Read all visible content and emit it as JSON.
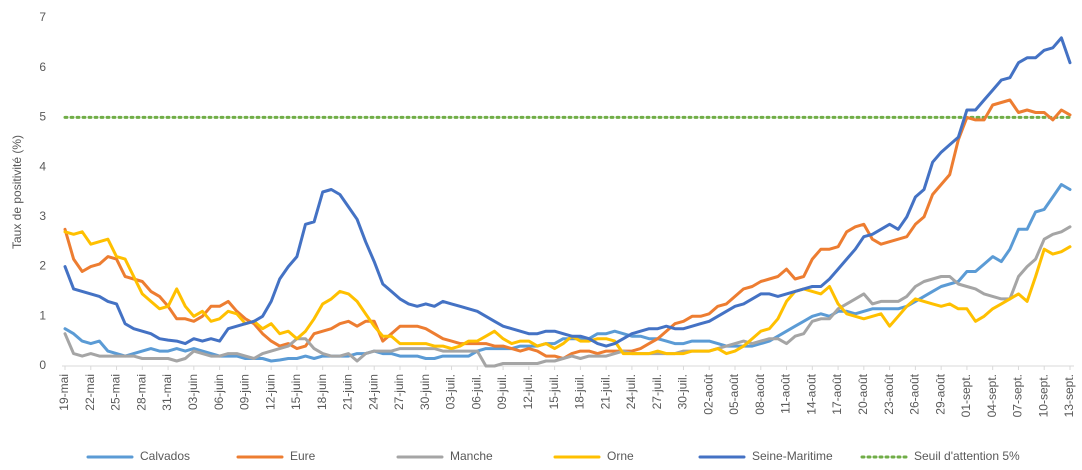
{
  "chart_data": {
    "type": "line",
    "y_label": "Taux de positivité (%)",
    "ylim": [
      0,
      7
    ],
    "yticks": [
      0,
      1,
      2,
      3,
      4,
      5,
      6,
      7
    ],
    "categories": [
      "19-mai",
      null,
      null,
      "22-mai",
      null,
      null,
      "25-mai",
      null,
      null,
      "28-mai",
      null,
      null,
      "31-mai",
      null,
      null,
      "03-juin",
      null,
      null,
      "06-juin",
      null,
      null,
      "09-juin",
      null,
      null,
      "12-juin",
      null,
      null,
      "15-juin",
      null,
      null,
      "18-juin",
      null,
      null,
      "21-juin",
      null,
      null,
      "24-juin",
      null,
      null,
      "27-juin",
      null,
      null,
      "30-juin",
      null,
      null,
      "03-juil.",
      null,
      null,
      "06-juil.",
      null,
      null,
      "09-juil.",
      null,
      null,
      "12-juil.",
      null,
      null,
      "15-juil.",
      null,
      null,
      "18-juil.",
      null,
      null,
      "21-juil.",
      null,
      null,
      "24-juil.",
      null,
      null,
      "27-juil.",
      null,
      null,
      "30-juil.",
      null,
      null,
      "02-août",
      null,
      null,
      "05-août",
      null,
      null,
      "08-août",
      null,
      null,
      "11-août",
      null,
      null,
      "14-août",
      null,
      null,
      "17-août",
      null,
      null,
      "20-août",
      null,
      null,
      "23-août",
      null,
      null,
      "26-août",
      null,
      null,
      "29-août",
      null,
      null,
      "01-sept.",
      null,
      null,
      "04-sept.",
      null,
      null,
      "07-sept.",
      null,
      null,
      "10-sept.",
      null,
      null,
      "13-sept."
    ],
    "series": [
      {
        "name": "Calvados",
        "color": "#5b9bd5",
        "values": [
          0.75,
          0.65,
          0.5,
          0.45,
          0.5,
          0.3,
          0.25,
          0.2,
          0.25,
          0.3,
          0.35,
          0.3,
          0.3,
          0.35,
          0.3,
          0.35,
          0.3,
          0.25,
          0.2,
          0.2,
          0.2,
          0.15,
          0.15,
          0.15,
          0.1,
          0.12,
          0.15,
          0.15,
          0.2,
          0.15,
          0.2,
          0.2,
          0.2,
          0.2,
          0.25,
          0.25,
          0.3,
          0.25,
          0.25,
          0.2,
          0.2,
          0.2,
          0.15,
          0.15,
          0.2,
          0.2,
          0.2,
          0.2,
          0.3,
          0.35,
          0.35,
          0.35,
          0.35,
          0.4,
          0.4,
          0.4,
          0.45,
          0.45,
          0.55,
          0.55,
          0.55,
          0.55,
          0.65,
          0.65,
          0.7,
          0.65,
          0.6,
          0.6,
          0.55,
          0.55,
          0.5,
          0.45,
          0.45,
          0.5,
          0.5,
          0.5,
          0.45,
          0.4,
          0.4,
          0.4,
          0.4,
          0.45,
          0.5,
          0.6,
          0.7,
          0.8,
          0.9,
          1.0,
          1.05,
          1.0,
          1.1,
          1.1,
          1.05,
          1.1,
          1.15,
          1.15,
          1.15,
          1.15,
          1.2,
          1.3,
          1.4,
          1.5,
          1.6,
          1.65,
          1.7,
          1.9,
          1.9,
          2.05,
          2.2,
          2.1,
          2.35,
          2.75,
          2.75,
          3.1,
          3.15,
          3.4,
          3.65,
          3.55
        ]
      },
      {
        "name": "Eure",
        "color": "#ed7d31",
        "values": [
          2.75,
          2.15,
          1.9,
          2.0,
          2.05,
          2.2,
          2.15,
          1.8,
          1.75,
          1.7,
          1.5,
          1.4,
          1.2,
          0.95,
          0.95,
          0.9,
          1.0,
          1.2,
          1.2,
          1.3,
          1.1,
          0.95,
          0.85,
          0.65,
          0.5,
          0.4,
          0.45,
          0.35,
          0.4,
          0.65,
          0.7,
          0.75,
          0.85,
          0.9,
          0.8,
          0.9,
          0.9,
          0.5,
          0.65,
          0.8,
          0.8,
          0.8,
          0.75,
          0.65,
          0.55,
          0.5,
          0.45,
          0.45,
          0.45,
          0.45,
          0.4,
          0.4,
          0.35,
          0.3,
          0.35,
          0.3,
          0.2,
          0.2,
          0.15,
          0.25,
          0.3,
          0.3,
          0.25,
          0.3,
          0.3,
          0.3,
          0.3,
          0.35,
          0.45,
          0.55,
          0.7,
          0.85,
          0.9,
          1.0,
          1.0,
          1.05,
          1.2,
          1.25,
          1.4,
          1.55,
          1.6,
          1.7,
          1.75,
          1.8,
          1.95,
          1.75,
          1.8,
          2.15,
          2.35,
          2.35,
          2.4,
          2.7,
          2.8,
          2.85,
          2.55,
          2.45,
          2.5,
          2.55,
          2.6,
          2.85,
          3.0,
          3.45,
          3.65,
          3.85,
          4.55,
          5.0,
          4.95,
          4.95,
          5.25,
          5.3,
          5.35,
          5.1,
          5.15,
          5.1,
          5.1,
          4.95,
          5.15,
          5.05
        ]
      },
      {
        "name": "Manche",
        "color": "#a5a5a5",
        "values": [
          0.65,
          0.25,
          0.2,
          0.25,
          0.2,
          0.2,
          0.2,
          0.2,
          0.2,
          0.15,
          0.15,
          0.15,
          0.15,
          0.1,
          0.15,
          0.3,
          0.25,
          0.2,
          0.2,
          0.25,
          0.25,
          0.2,
          0.15,
          0.25,
          0.3,
          0.35,
          0.4,
          0.55,
          0.55,
          0.35,
          0.25,
          0.2,
          0.2,
          0.25,
          0.1,
          0.25,
          0.3,
          0.3,
          0.3,
          0.35,
          0.35,
          0.35,
          0.35,
          0.35,
          0.3,
          0.3,
          0.3,
          0.3,
          0.3,
          0.0,
          0.0,
          0.05,
          0.05,
          0.05,
          0.05,
          0.05,
          0.1,
          0.1,
          0.15,
          0.2,
          0.15,
          0.2,
          0.2,
          0.2,
          0.25,
          0.3,
          0.25,
          0.25,
          0.25,
          0.25,
          0.25,
          0.25,
          0.3,
          0.3,
          0.3,
          0.3,
          0.35,
          0.4,
          0.45,
          0.5,
          0.45,
          0.5,
          0.55,
          0.55,
          0.45,
          0.6,
          0.65,
          0.9,
          0.95,
          0.95,
          1.15,
          1.25,
          1.35,
          1.45,
          1.25,
          1.3,
          1.3,
          1.3,
          1.4,
          1.6,
          1.7,
          1.75,
          1.8,
          1.8,
          1.65,
          1.6,
          1.55,
          1.45,
          1.4,
          1.35,
          1.35,
          1.8,
          2.0,
          2.15,
          2.55,
          2.65,
          2.7,
          2.8
        ]
      },
      {
        "name": "Orne",
        "color": "#ffc000",
        "values": [
          2.7,
          2.65,
          2.7,
          2.45,
          2.5,
          2.55,
          2.2,
          2.15,
          1.8,
          1.45,
          1.3,
          1.15,
          1.2,
          1.55,
          1.2,
          1.0,
          1.1,
          0.9,
          0.95,
          1.1,
          1.05,
          0.85,
          0.9,
          0.75,
          0.85,
          0.65,
          0.7,
          0.55,
          0.7,
          0.95,
          1.25,
          1.35,
          1.5,
          1.45,
          1.3,
          1.05,
          0.8,
          0.6,
          0.6,
          0.45,
          0.45,
          0.45,
          0.45,
          0.4,
          0.4,
          0.35,
          0.4,
          0.5,
          0.5,
          0.6,
          0.7,
          0.55,
          0.45,
          0.5,
          0.5,
          0.4,
          0.45,
          0.35,
          0.45,
          0.6,
          0.5,
          0.5,
          0.55,
          0.55,
          0.5,
          0.25,
          0.25,
          0.25,
          0.25,
          0.3,
          0.25,
          0.25,
          0.25,
          0.3,
          0.3,
          0.3,
          0.35,
          0.25,
          0.3,
          0.4,
          0.55,
          0.7,
          0.75,
          0.95,
          1.3,
          1.5,
          1.55,
          1.5,
          1.45,
          1.6,
          1.25,
          1.05,
          1.0,
          0.95,
          1.0,
          1.05,
          0.8,
          1.0,
          1.2,
          1.35,
          1.3,
          1.25,
          1.2,
          1.25,
          1.15,
          1.15,
          0.9,
          1.0,
          1.15,
          1.25,
          1.35,
          1.45,
          1.3,
          1.8,
          2.35,
          2.25,
          2.3,
          2.4
        ]
      },
      {
        "name": "Seine-Maritime",
        "color": "#4472c4",
        "values": [
          2.0,
          1.55,
          1.5,
          1.45,
          1.4,
          1.3,
          1.25,
          0.85,
          0.75,
          0.7,
          0.65,
          0.55,
          0.52,
          0.5,
          0.45,
          0.55,
          0.5,
          0.55,
          0.5,
          0.75,
          0.8,
          0.85,
          0.9,
          1.0,
          1.3,
          1.75,
          2.0,
          2.2,
          2.85,
          2.9,
          3.5,
          3.55,
          3.45,
          3.2,
          2.95,
          2.5,
          2.1,
          1.65,
          1.5,
          1.35,
          1.25,
          1.2,
          1.25,
          1.2,
          1.3,
          1.25,
          1.2,
          1.15,
          1.1,
          1.0,
          0.9,
          0.8,
          0.75,
          0.7,
          0.65,
          0.65,
          0.7,
          0.7,
          0.65,
          0.6,
          0.6,
          0.55,
          0.45,
          0.4,
          0.45,
          0.55,
          0.65,
          0.7,
          0.75,
          0.75,
          0.8,
          0.75,
          0.75,
          0.8,
          0.85,
          0.9,
          1.0,
          1.1,
          1.2,
          1.25,
          1.35,
          1.45,
          1.45,
          1.4,
          1.45,
          1.5,
          1.55,
          1.6,
          1.6,
          1.75,
          1.95,
          2.15,
          2.35,
          2.6,
          2.65,
          2.75,
          2.85,
          2.75,
          3.0,
          3.4,
          3.55,
          4.1,
          4.3,
          4.45,
          4.6,
          5.15,
          5.15,
          5.35,
          5.55,
          5.75,
          5.8,
          6.1,
          6.2,
          6.2,
          6.35,
          6.4,
          6.6,
          6.1
        ]
      }
    ],
    "threshold": {
      "name": "Seuil d'attention 5%",
      "value": 5,
      "color": "#70ad47"
    }
  }
}
